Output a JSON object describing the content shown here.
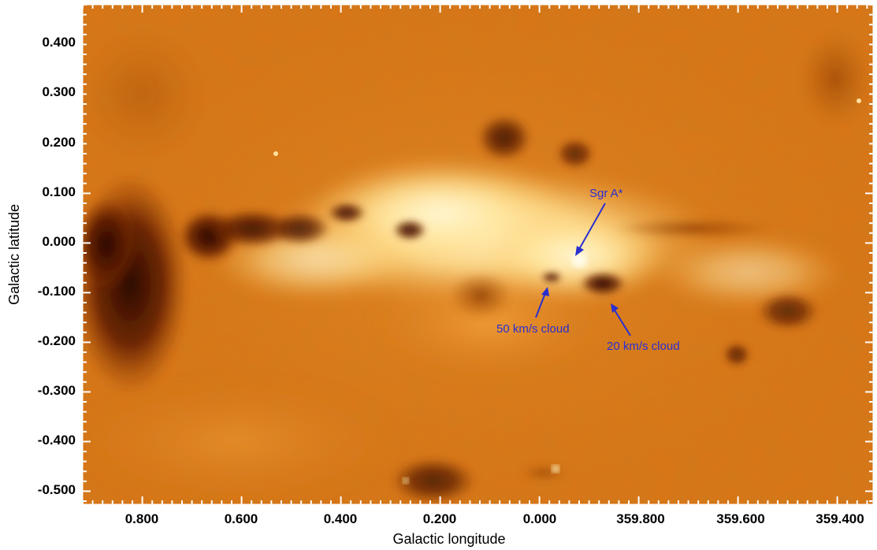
{
  "figure": {
    "xlabel": "Galactic longitude",
    "ylabel": "Galactic latitude",
    "x_ticks": [
      "0.800",
      "0.600",
      "0.400",
      "0.200",
      "0.000",
      "359.800",
      "359.600",
      "359.400"
    ],
    "y_ticks": [
      "0.400",
      "0.300",
      "0.200",
      "0.100",
      "0.000",
      "-0.100",
      "-0.200",
      "-0.300",
      "-0.400",
      "-0.500"
    ],
    "colormap": {
      "dark": "#2a0a00",
      "mid": "#d8700c",
      "bright": "#fff4c8"
    },
    "annotation_color": "#2a2fd0",
    "annotations": [
      {
        "id": "sgr-a",
        "text": "Sgr A*"
      },
      {
        "id": "cloud-50",
        "text": "50 km/s cloud"
      },
      {
        "id": "cloud-20",
        "text": "20 km/s cloud"
      }
    ]
  }
}
